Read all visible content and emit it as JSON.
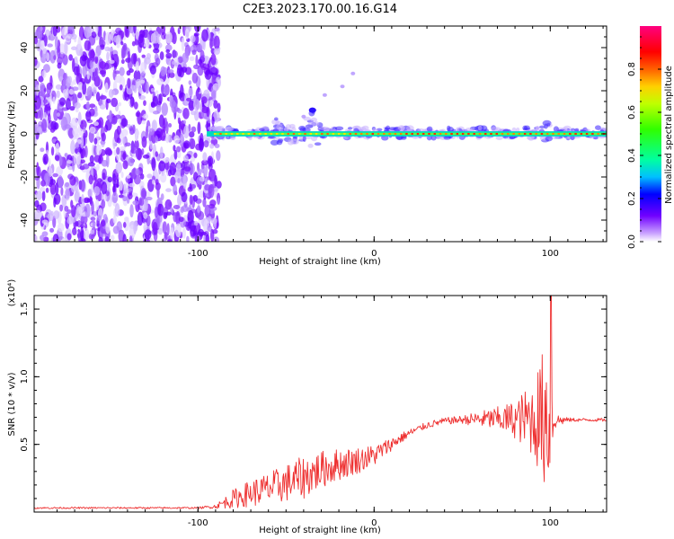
{
  "title": "C2E3.2023.170.00.16.G14",
  "chart_data": [
    {
      "type": "heatmap",
      "xlabel": "Height of straight line (km)",
      "ylabel": "Frequency (Hz)",
      "xlim": [
        -193,
        132
      ],
      "ylim": [
        -50,
        50
      ],
      "xticks": [
        -100,
        0,
        100
      ],
      "xtick_labels": [
        "-100",
        "0",
        "100"
      ],
      "yticks": [
        -40,
        -20,
        0,
        20,
        40
      ],
      "ytick_labels": [
        "-40",
        "-20",
        "0",
        "20",
        "40"
      ],
      "noise_region_x": [
        -193,
        -92
      ],
      "signal_line": {
        "frequency_hz": 0,
        "x_start": -95,
        "x_end": 132,
        "features": [
          {
            "x": -75,
            "max_spread_hz": 6
          },
          {
            "x": -55,
            "max_spread_hz": 8
          },
          {
            "x": -45,
            "max_spread_hz": 9
          },
          {
            "x": -35,
            "max_spread_hz": 12
          },
          {
            "x": 97,
            "max_spread_hz": 6
          }
        ]
      },
      "colorbar": {
        "label": "Normalized spectral amplitude",
        "range": [
          0,
          1
        ],
        "ticks": [
          "0.0",
          "0.2",
          "0.4",
          "0.6",
          "0.8"
        ],
        "colors": [
          "#ffffff",
          "#a070ff",
          "#6a00ff",
          "#0000ff",
          "#00c8ff",
          "#00ff60",
          "#ffff00",
          "#ff8000",
          "#ff0000",
          "#ff0080"
        ]
      },
      "grid": false
    },
    {
      "type": "line",
      "xlabel": "Height of straight line (km)",
      "ylabel": "SNR (10 * v/v)",
      "multiplier": "(x10⁴)",
      "xlim": [
        -193,
        132
      ],
      "ylim": [
        0,
        16000
      ],
      "xticks": [
        -100,
        0,
        100
      ],
      "xtick_labels": [
        "-100",
        "0",
        "100"
      ],
      "yticks": [
        5000,
        10000,
        15000
      ],
      "ytick_labels": [
        "0.5",
        "1.0",
        "1.5"
      ],
      "color": "#ee3030",
      "envelope": {
        "x": [
          -193,
          -100,
          -90,
          -80,
          -70,
          -60,
          -50,
          -40,
          -30,
          -20,
          -10,
          0,
          10,
          20,
          30,
          40,
          50,
          60,
          70,
          80,
          90,
          95,
          98,
          100,
          103,
          110,
          120,
          132
        ],
        "y": [
          300,
          300,
          400,
          900,
          1300,
          1600,
          2000,
          2400,
          3000,
          3400,
          3700,
          4100,
          5000,
          5800,
          6400,
          6700,
          6800,
          6800,
          6800,
          6700,
          6600,
          6600,
          6600,
          6700,
          6700,
          6800,
          6800,
          6800
        ],
        "noise": [
          60,
          60,
          150,
          700,
          1000,
          1200,
          1400,
          1600,
          1400,
          1200,
          1000,
          800,
          500,
          300,
          250,
          250,
          300,
          600,
          900,
          1400,
          2800,
          4500,
          6500,
          5000,
          600,
          150,
          120,
          120
        ]
      },
      "grid": false
    }
  ]
}
